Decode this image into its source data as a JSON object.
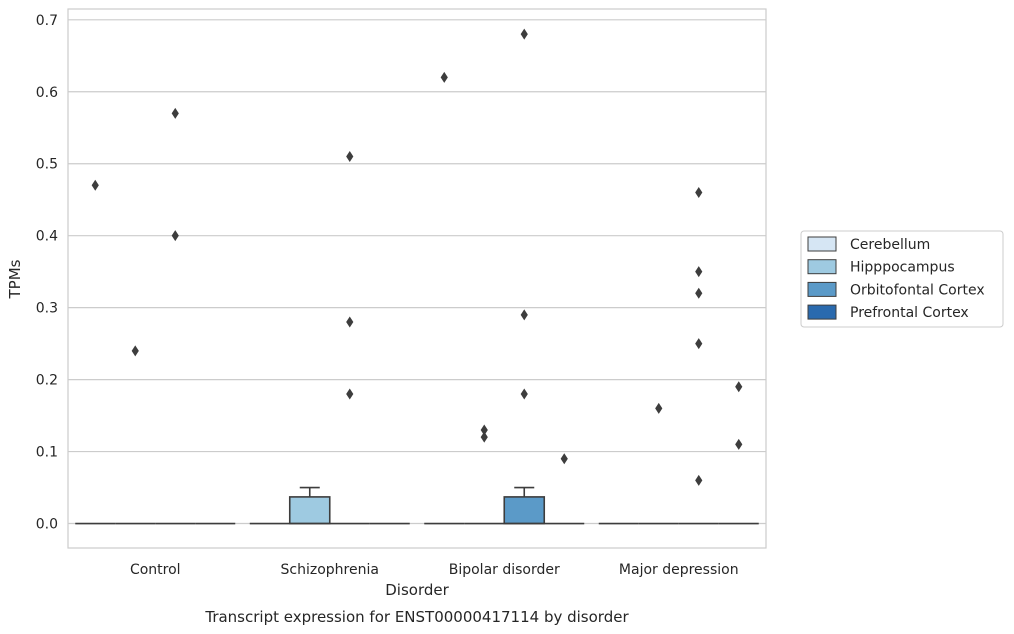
{
  "chart_data": {
    "type": "box",
    "title": "Transcript expression for ENST00000417114 by disorder",
    "xlabel": "Disorder",
    "ylabel": "TPMs",
    "ylim": [
      -0.034,
      0.715
    ],
    "yticks": [
      0.0,
      0.1,
      0.2,
      0.3,
      0.4,
      0.5,
      0.6,
      0.7
    ],
    "ytick_labels": [
      "0.0",
      "0.1",
      "0.2",
      "0.3",
      "0.4",
      "0.5",
      "0.6",
      "0.7"
    ],
    "grid": "horizontal",
    "legend_position": "right",
    "categories": [
      "Control",
      "Schizophrenia",
      "Bipolar disorder",
      "Major depression"
    ],
    "series": [
      {
        "name": "Cerebellum",
        "color": "#d6e6f4",
        "boxes": [
          {
            "q1": 0,
            "median": 0,
            "q3": 0,
            "whisker_low": 0,
            "whisker_high": 0,
            "outliers": [
              0.47
            ]
          },
          {
            "q1": 0,
            "median": 0,
            "q3": 0,
            "whisker_low": 0,
            "whisker_high": 0,
            "outliers": []
          },
          {
            "q1": 0,
            "median": 0,
            "q3": 0,
            "whisker_low": 0,
            "whisker_high": 0,
            "outliers": [
              0.62
            ]
          },
          {
            "q1": 0,
            "median": 0,
            "q3": 0,
            "whisker_low": 0,
            "whisker_high": 0,
            "outliers": []
          }
        ]
      },
      {
        "name": "Hipppocampus",
        "color": "#9ecae1",
        "boxes": [
          {
            "q1": 0,
            "median": 0,
            "q3": 0,
            "whisker_low": 0,
            "whisker_high": 0,
            "outliers": [
              0.24
            ]
          },
          {
            "q1": 0,
            "median": 0,
            "q3": 0.037,
            "whisker_low": 0,
            "whisker_high": 0.05,
            "outliers": []
          },
          {
            "q1": 0,
            "median": 0,
            "q3": 0,
            "whisker_low": 0,
            "whisker_high": 0,
            "outliers": [
              0.12,
              0.13
            ]
          },
          {
            "q1": 0,
            "median": 0,
            "q3": 0,
            "whisker_low": 0,
            "whisker_high": 0,
            "outliers": [
              0.16
            ]
          }
        ]
      },
      {
        "name": "Orbitofontal Cortex",
        "color": "#5b9ac8",
        "boxes": [
          {
            "q1": 0,
            "median": 0,
            "q3": 0,
            "whisker_low": 0,
            "whisker_high": 0,
            "outliers": [
              0.57,
              0.4
            ]
          },
          {
            "q1": 0,
            "median": 0,
            "q3": 0,
            "whisker_low": 0,
            "whisker_high": 0,
            "outliers": [
              0.51,
              0.28,
              0.18
            ]
          },
          {
            "q1": 0,
            "median": 0,
            "q3": 0.037,
            "whisker_low": 0,
            "whisker_high": 0.05,
            "outliers": [
              0.68,
              0.29,
              0.18
            ]
          },
          {
            "q1": 0,
            "median": 0,
            "q3": 0,
            "whisker_low": 0,
            "whisker_high": 0,
            "outliers": [
              0.46,
              0.35,
              0.32,
              0.25,
              0.06
            ]
          }
        ]
      },
      {
        "name": "Prefrontal Cortex",
        "color": "#2a6aae",
        "boxes": [
          {
            "q1": 0,
            "median": 0,
            "q3": 0,
            "whisker_low": 0,
            "whisker_high": 0,
            "outliers": []
          },
          {
            "q1": 0,
            "median": 0,
            "q3": 0,
            "whisker_low": 0,
            "whisker_high": 0,
            "outliers": []
          },
          {
            "q1": 0,
            "median": 0,
            "q3": 0,
            "whisker_low": 0,
            "whisker_high": 0,
            "outliers": [
              0.09
            ]
          },
          {
            "q1": 0,
            "median": 0,
            "q3": 0,
            "whisker_low": 0,
            "whisker_high": 0,
            "outliers": [
              0.19,
              0.11
            ]
          }
        ]
      }
    ]
  }
}
